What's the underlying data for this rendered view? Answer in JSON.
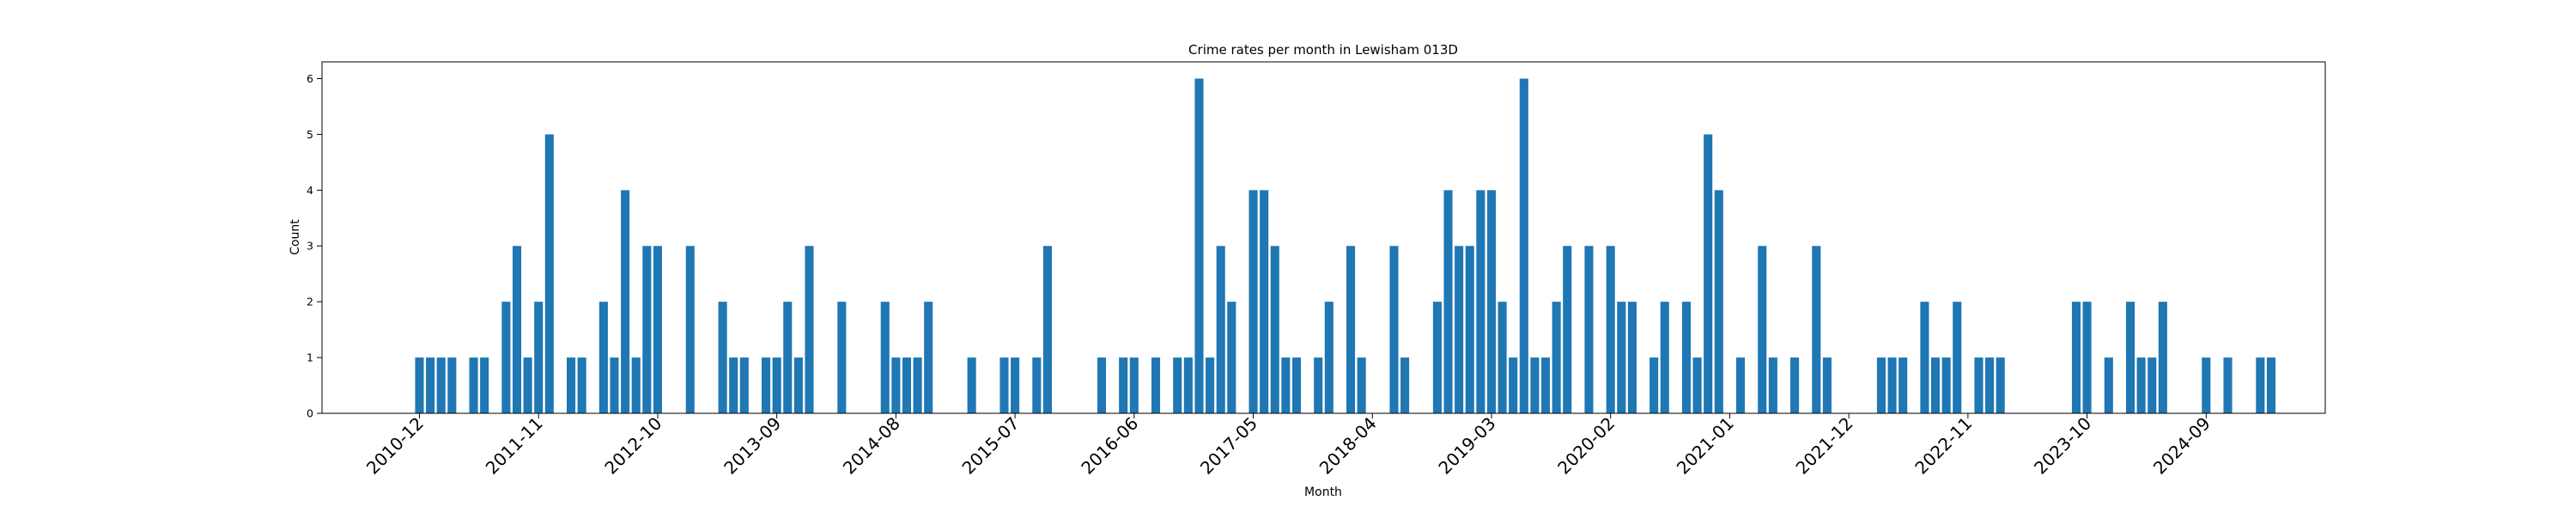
{
  "chart_data": {
    "type": "bar",
    "title": "Crime rates per month in Lewisham 013D",
    "xlabel": "Month",
    "ylabel": "Count",
    "ylim": [
      0,
      6.3
    ],
    "xlim": [
      "2010-03",
      "2025-08"
    ],
    "yticks": [
      0,
      1,
      2,
      3,
      4,
      5,
      6
    ],
    "xticks": [
      "2010-12",
      "2011-11",
      "2012-10",
      "2013-09",
      "2014-08",
      "2015-07",
      "2016-06",
      "2017-05",
      "2018-04",
      "2019-03",
      "2020-02",
      "2021-01",
      "2021-12",
      "2022-11",
      "2023-10",
      "2024-09"
    ],
    "grid": false,
    "legend": "none",
    "bar_color": "#1f77b4",
    "points": [
      {
        "x": "2010-12",
        "y": 1
      },
      {
        "x": "2011-01",
        "y": 1
      },
      {
        "x": "2011-02",
        "y": 1
      },
      {
        "x": "2011-03",
        "y": 1
      },
      {
        "x": "2011-05",
        "y": 1
      },
      {
        "x": "2011-06",
        "y": 1
      },
      {
        "x": "2011-08",
        "y": 2
      },
      {
        "x": "2011-09",
        "y": 3
      },
      {
        "x": "2011-10",
        "y": 1
      },
      {
        "x": "2011-11",
        "y": 2
      },
      {
        "x": "2011-12",
        "y": 5
      },
      {
        "x": "2012-02",
        "y": 1
      },
      {
        "x": "2012-03",
        "y": 1
      },
      {
        "x": "2012-05",
        "y": 2
      },
      {
        "x": "2012-06",
        "y": 1
      },
      {
        "x": "2012-07",
        "y": 4
      },
      {
        "x": "2012-08",
        "y": 1
      },
      {
        "x": "2012-09",
        "y": 3
      },
      {
        "x": "2012-10",
        "y": 3
      },
      {
        "x": "2013-01",
        "y": 3
      },
      {
        "x": "2013-04",
        "y": 2
      },
      {
        "x": "2013-05",
        "y": 1
      },
      {
        "x": "2013-06",
        "y": 1
      },
      {
        "x": "2013-08",
        "y": 1
      },
      {
        "x": "2013-09",
        "y": 1
      },
      {
        "x": "2013-10",
        "y": 2
      },
      {
        "x": "2013-11",
        "y": 1
      },
      {
        "x": "2013-12",
        "y": 3
      },
      {
        "x": "2014-03",
        "y": 2
      },
      {
        "x": "2014-07",
        "y": 2
      },
      {
        "x": "2014-08",
        "y": 1
      },
      {
        "x": "2014-09",
        "y": 1
      },
      {
        "x": "2014-10",
        "y": 1
      },
      {
        "x": "2014-11",
        "y": 2
      },
      {
        "x": "2015-03",
        "y": 1
      },
      {
        "x": "2015-06",
        "y": 1
      },
      {
        "x": "2015-07",
        "y": 1
      },
      {
        "x": "2015-09",
        "y": 1
      },
      {
        "x": "2015-10",
        "y": 3
      },
      {
        "x": "2016-03",
        "y": 1
      },
      {
        "x": "2016-05",
        "y": 1
      },
      {
        "x": "2016-06",
        "y": 1
      },
      {
        "x": "2016-08",
        "y": 1
      },
      {
        "x": "2016-10",
        "y": 1
      },
      {
        "x": "2016-11",
        "y": 1
      },
      {
        "x": "2016-12",
        "y": 6
      },
      {
        "x": "2017-01",
        "y": 1
      },
      {
        "x": "2017-02",
        "y": 3
      },
      {
        "x": "2017-03",
        "y": 2
      },
      {
        "x": "2017-05",
        "y": 4
      },
      {
        "x": "2017-06",
        "y": 4
      },
      {
        "x": "2017-07",
        "y": 3
      },
      {
        "x": "2017-08",
        "y": 1
      },
      {
        "x": "2017-09",
        "y": 1
      },
      {
        "x": "2017-11",
        "y": 1
      },
      {
        "x": "2017-12",
        "y": 2
      },
      {
        "x": "2018-02",
        "y": 3
      },
      {
        "x": "2018-03",
        "y": 1
      },
      {
        "x": "2018-06",
        "y": 3
      },
      {
        "x": "2018-07",
        "y": 1
      },
      {
        "x": "2018-10",
        "y": 2
      },
      {
        "x": "2018-11",
        "y": 4
      },
      {
        "x": "2018-12",
        "y": 3
      },
      {
        "x": "2019-01",
        "y": 3
      },
      {
        "x": "2019-02",
        "y": 4
      },
      {
        "x": "2019-03",
        "y": 4
      },
      {
        "x": "2019-04",
        "y": 2
      },
      {
        "x": "2019-05",
        "y": 1
      },
      {
        "x": "2019-06",
        "y": 6
      },
      {
        "x": "2019-07",
        "y": 1
      },
      {
        "x": "2019-08",
        "y": 1
      },
      {
        "x": "2019-09",
        "y": 2
      },
      {
        "x": "2019-10",
        "y": 3
      },
      {
        "x": "2019-12",
        "y": 3
      },
      {
        "x": "2020-02",
        "y": 3
      },
      {
        "x": "2020-03",
        "y": 2
      },
      {
        "x": "2020-04",
        "y": 2
      },
      {
        "x": "2020-06",
        "y": 1
      },
      {
        "x": "2020-07",
        "y": 2
      },
      {
        "x": "2020-09",
        "y": 2
      },
      {
        "x": "2020-10",
        "y": 1
      },
      {
        "x": "2020-11",
        "y": 5
      },
      {
        "x": "2020-12",
        "y": 4
      },
      {
        "x": "2021-02",
        "y": 1
      },
      {
        "x": "2021-04",
        "y": 3
      },
      {
        "x": "2021-05",
        "y": 1
      },
      {
        "x": "2021-07",
        "y": 1
      },
      {
        "x": "2021-09",
        "y": 3
      },
      {
        "x": "2021-10",
        "y": 1
      },
      {
        "x": "2022-03",
        "y": 1
      },
      {
        "x": "2022-04",
        "y": 1
      },
      {
        "x": "2022-05",
        "y": 1
      },
      {
        "x": "2022-07",
        "y": 2
      },
      {
        "x": "2022-08",
        "y": 1
      },
      {
        "x": "2022-09",
        "y": 1
      },
      {
        "x": "2022-10",
        "y": 2
      },
      {
        "x": "2022-12",
        "y": 1
      },
      {
        "x": "2023-01",
        "y": 1
      },
      {
        "x": "2023-02",
        "y": 1
      },
      {
        "x": "2023-09",
        "y": 2
      },
      {
        "x": "2023-10",
        "y": 2
      },
      {
        "x": "2023-12",
        "y": 1
      },
      {
        "x": "2024-02",
        "y": 2
      },
      {
        "x": "2024-03",
        "y": 1
      },
      {
        "x": "2024-04",
        "y": 1
      },
      {
        "x": "2024-05",
        "y": 2
      },
      {
        "x": "2024-09",
        "y": 1
      },
      {
        "x": "2024-11",
        "y": 1
      },
      {
        "x": "2025-02",
        "y": 1
      },
      {
        "x": "2025-03",
        "y": 1
      }
    ]
  }
}
